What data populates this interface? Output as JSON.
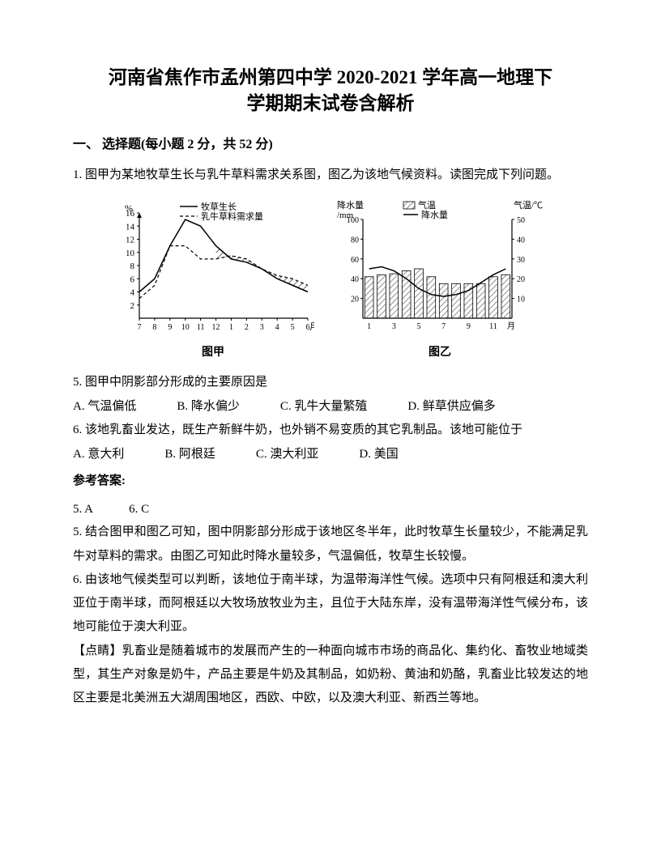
{
  "title_line1": "河南省焦作市孟州第四中学 2020-2021 学年高一地理下",
  "title_line2": "学期期末试卷含解析",
  "section_header": "一、 选择题(每小题 2 分，共 52 分)",
  "q1_intro": "1. 图甲为某地牧草生长与乳牛草料需求关系图，图乙为该地气候资料。读图完成下列问题。",
  "chart1": {
    "label": "图甲",
    "legend1": "牧草生长",
    "legend2": "乳牛草料需求量",
    "y_label": "%",
    "y_ticks": [
      "16",
      "14",
      "12",
      "10",
      "8",
      "6",
      "4",
      "2"
    ],
    "x_ticks": [
      "7",
      "8",
      "9",
      "10",
      "11",
      "12",
      "1",
      "2",
      "3",
      "4",
      "5",
      "6"
    ],
    "x_label": "月",
    "grass_growth": [
      4,
      6,
      11,
      15,
      14,
      11,
      9,
      8.5,
      7.5,
      6,
      5,
      4
    ],
    "demand": [
      3,
      5,
      11,
      11,
      9,
      9,
      9.5,
      9,
      7.5,
      6.5,
      6,
      5
    ],
    "line_color": "#000000",
    "bg_color": "#f8f8f8",
    "hatch_color": "#6b6b6b"
  },
  "chart2": {
    "label": "图乙",
    "legend_temp": "气温",
    "legend_precip": "降水量",
    "y1_label": "降水量/mm",
    "y2_label": "气温/℃",
    "y1_ticks": [
      "100",
      "80",
      "60",
      "40",
      "20"
    ],
    "y2_ticks": [
      "50",
      "40",
      "30",
      "20",
      "10"
    ],
    "x_ticks": [
      "1",
      "3",
      "5",
      "7",
      "9",
      "11"
    ],
    "x_label": "月",
    "precipitation": [
      42,
      44,
      45,
      48,
      50,
      42,
      35,
      35,
      35,
      35,
      42,
      44
    ],
    "temperature": [
      25,
      26,
      24,
      20,
      15,
      12,
      11,
      12,
      14,
      18,
      22,
      25
    ],
    "bar_color": "#ffffff",
    "hatch_color": "#6b6b6b",
    "line_color": "#000000"
  },
  "q5_text": "5. 图甲中阴影部分形成的主要原因是",
  "q5_options": {
    "A": "A. 气温偏低",
    "B": "B. 降水偏少",
    "C": "C. 乳牛大量繁殖",
    "D": "D. 鲜草供应偏多"
  },
  "q6_text": "6. 该地乳畜业发达，既生产新鲜牛奶，也外销不易变质的其它乳制品。该地可能位于",
  "q6_options": {
    "A": "A. 意大利",
    "B": "B. 阿根廷",
    "C": "C. 澳大利亚",
    "D": "D. 美国"
  },
  "answer_header": "参考答案:",
  "answer_keys": "5. A　　　6. C",
  "exp5": "5. 结合图甲和图乙可知，图中阴影部分形成于该地区冬半年，此时牧草生长量较少，不能满足乳牛对草料的需求。由图乙可知此时降水量较多，气温偏低，牧草生长较慢。",
  "exp6": "6. 由该地气候类型可以判断，该地位于南半球，为温带海洋性气候。选项中只有阿根廷和澳大利亚位于南半球，而阿根廷以大牧场放牧业为主，且位于大陆东岸，没有温带海洋性气候分布，该地可能位于澳大利亚。",
  "tip": "【点睛】乳畜业是随着城市的发展而产生的一种面向城市市场的商品化、集约化、畜牧业地域类型，其生产对象是奶牛，产品主要是牛奶及其制品，如奶粉、黄油和奶酪，乳畜业比较发达的地区主要是北美洲五大湖周围地区，西欧、中欧，以及澳大利亚、新西兰等地。"
}
